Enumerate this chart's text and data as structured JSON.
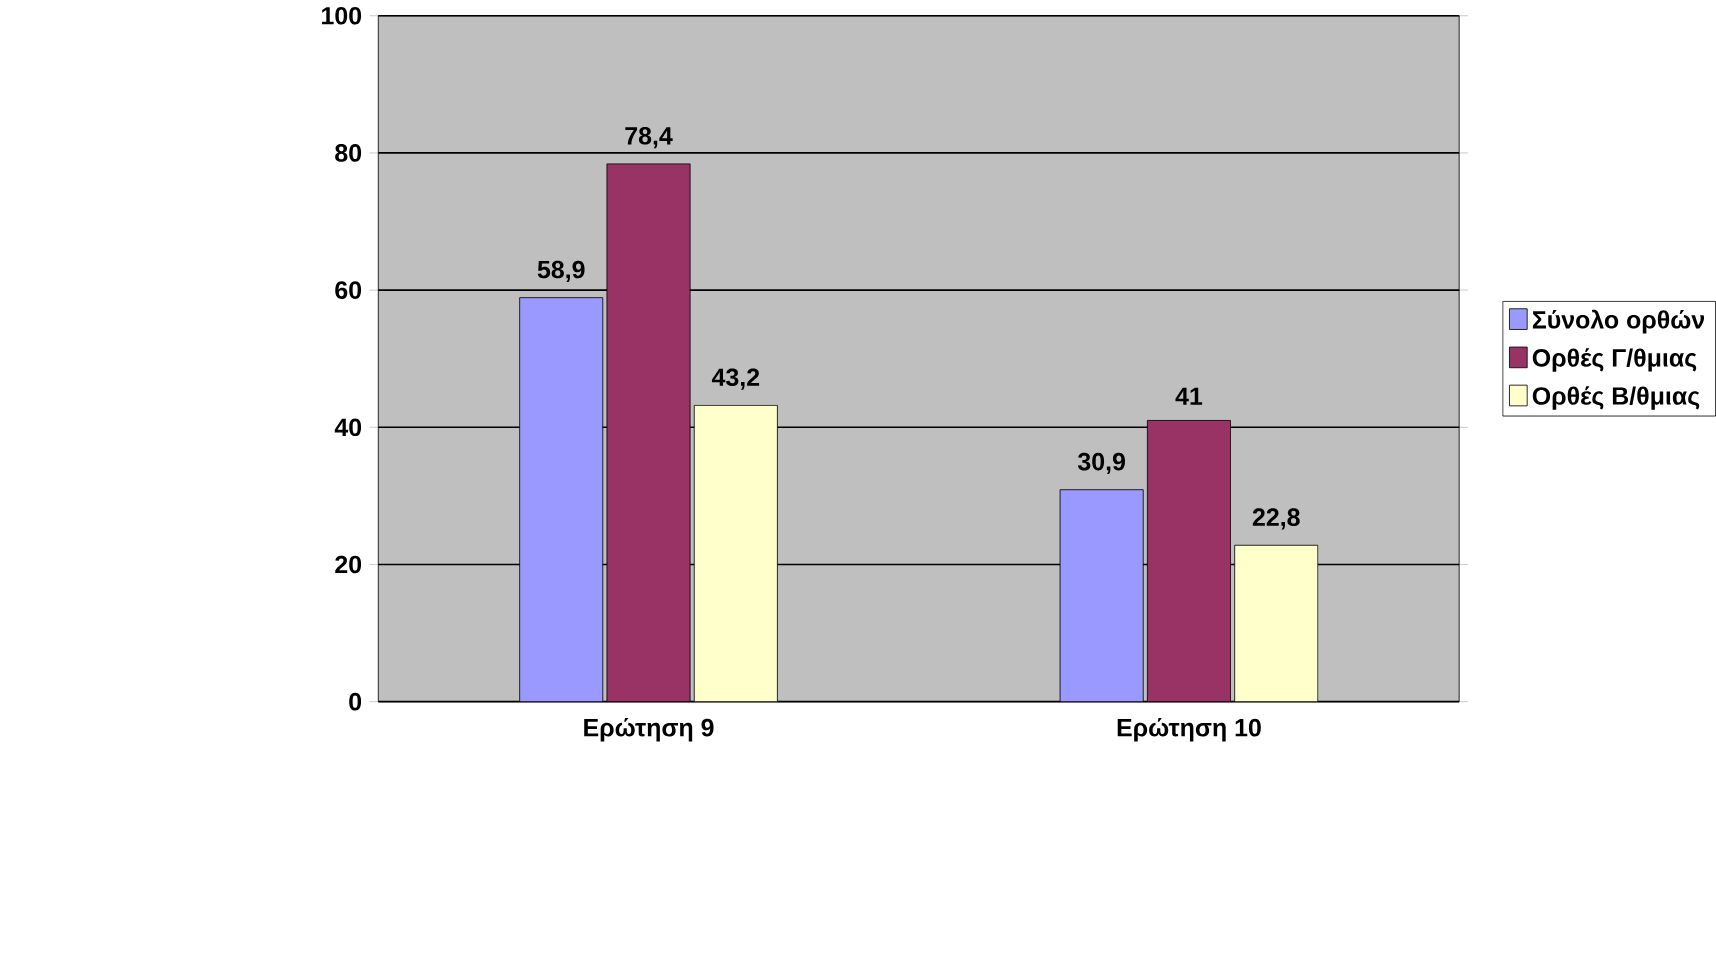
{
  "chart_data": {
    "type": "bar",
    "categories": [
      "Ερώτηση 9",
      "Ερώτηση 10"
    ],
    "series": [
      {
        "name": "Σύνολο ορθών",
        "color": "#9999ff",
        "values": [
          58.9,
          30.9
        ],
        "value_labels": [
          "58,9",
          "30,9"
        ]
      },
      {
        "name": "Ορθές Γ/θμιας",
        "color": "#993366",
        "values": [
          78.4,
          41
        ],
        "value_labels": [
          "78,4",
          "41"
        ]
      },
      {
        "name": "Ορθές Β/θμιας",
        "color": "#ffffcc",
        "values": [
          43.2,
          22.8
        ],
        "value_labels": [
          "43,2",
          "22,8"
        ]
      }
    ],
    "ylim": [
      0,
      100
    ],
    "yticks": [
      0,
      20,
      40,
      60,
      80,
      100
    ],
    "grid": "y",
    "legend": "right"
  }
}
